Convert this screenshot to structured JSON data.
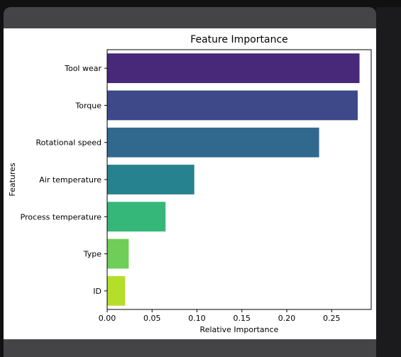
{
  "chart_data": {
    "type": "bar",
    "orientation": "horizontal",
    "title": "Feature Importance",
    "xlabel": "Relative Importance",
    "ylabel": "Features",
    "categories": [
      "Tool wear",
      "Torque",
      "Rotational speed",
      "Air temperature",
      "Process temperature",
      "Type",
      "ID"
    ],
    "values": [
      0.281,
      0.279,
      0.236,
      0.097,
      0.065,
      0.024,
      0.02
    ],
    "xlim": [
      0,
      0.294
    ],
    "xticks": [
      0.0,
      0.05,
      0.1,
      0.15,
      0.2,
      0.25
    ],
    "xtick_labels": [
      "0.00",
      "0.05",
      "0.10",
      "0.15",
      "0.20",
      "0.25"
    ],
    "colors": [
      "#482878",
      "#3e4989",
      "#31688e",
      "#26828e",
      "#35b779",
      "#6ece58",
      "#b5de2b"
    ],
    "grid": false,
    "legend": "none"
  }
}
